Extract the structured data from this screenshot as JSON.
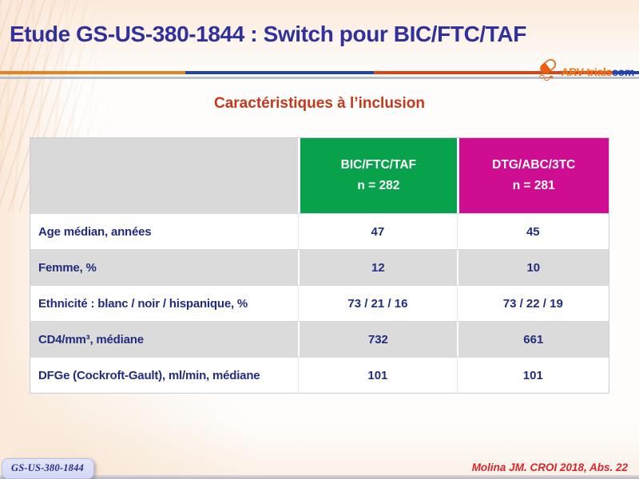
{
  "slide": {
    "title": "Etude GS-US-380-1844 : Switch pour BIC/FTC/TAF",
    "subtitle": "Caractéristiques à l’inclusion",
    "study_badge": "GS-US-380-1844",
    "reference": "Molina JM. CROI 2018, Abs. 22"
  },
  "logo": {
    "text_orange": "ARV-trials",
    "text_blue": "com",
    "icon": "capsule-icon"
  },
  "colors": {
    "title_blue": "#31319A",
    "subtitle_red": "#C2391C",
    "reference_red": "#D9262E",
    "table_green": "#09A24C",
    "table_magenta": "#CE0D92",
    "table_text_navy": "#222C7D",
    "divider_orange": "#E8821E",
    "divider_blue": "#2143AE",
    "divider_red": "#DC4413"
  },
  "table": {
    "header": {
      "corner": "",
      "columns": [
        {
          "line1": "BIC/FTC/TAF",
          "line2": "n = 282",
          "bg": "#09A24C"
        },
        {
          "line1": "DTG/ABC/3TC",
          "line2": "n = 281",
          "bg": "#CE0D92"
        }
      ]
    },
    "rows": [
      {
        "label": "Age médian, années",
        "values": [
          "47",
          "45"
        ]
      },
      {
        "label": "Femme, %",
        "values": [
          "12",
          "10"
        ]
      },
      {
        "label": "Ethnicité : blanc / noir / hispanique, %",
        "values": [
          "73 / 21 / 16",
          "73 / 22 / 19"
        ]
      },
      {
        "label": "CD4/mm³, médiane",
        "values": [
          "732",
          "661"
        ]
      },
      {
        "label": "DFGe (Cockroft-Gault), ml/min, médiane",
        "values": [
          "101",
          "101"
        ]
      }
    ]
  }
}
